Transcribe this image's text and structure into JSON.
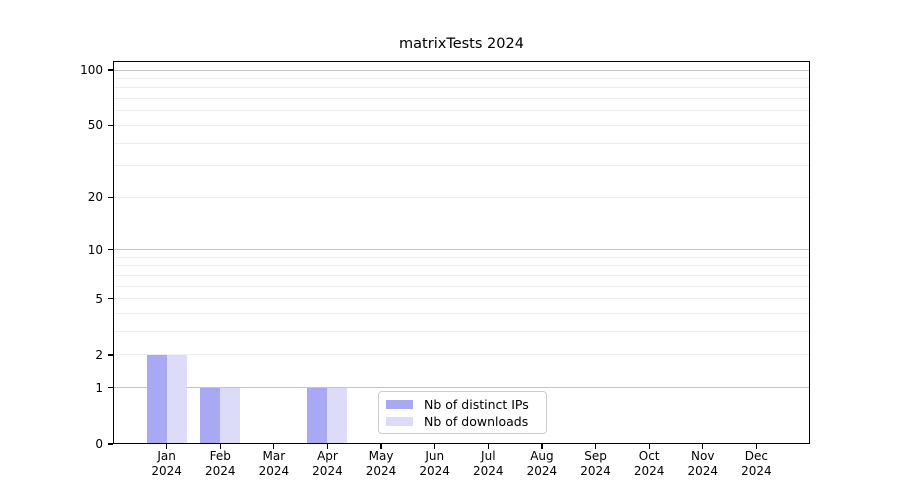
{
  "chart_data": {
    "type": "bar",
    "title": "matrixTests 2024",
    "xlabel": "",
    "ylabel": "",
    "categories": [
      "Jan",
      "Feb",
      "Mar",
      "Apr",
      "May",
      "Jun",
      "Jul",
      "Aug",
      "Sep",
      "Oct",
      "Nov",
      "Dec"
    ],
    "category_year": "2024",
    "series": [
      {
        "name": "Nb of distinct IPs",
        "color": "#a9a9f3",
        "values": [
          2,
          1,
          0,
          1,
          0,
          0,
          0,
          0,
          0,
          0,
          0,
          0
        ]
      },
      {
        "name": "Nb of downloads",
        "color": "#dcdcf8",
        "values": [
          2,
          1,
          0,
          1,
          0,
          0,
          0,
          0,
          0,
          0,
          0,
          0
        ]
      }
    ],
    "yscale": "log1p",
    "ylim": [
      0,
      112
    ],
    "y_ticks": [
      100,
      50,
      20,
      10,
      5,
      2,
      1,
      0
    ],
    "y_minor_grid": [
      2,
      3,
      4,
      5,
      6,
      7,
      8,
      9,
      20,
      30,
      40,
      50,
      60,
      70,
      80,
      90
    ],
    "y_major_grid": [
      1,
      10,
      100
    ],
    "grid": "horizontal-only",
    "legend_position": "inside lower-center",
    "colors": {
      "minor_grid": "#ececec",
      "major_grid": "#c4c4c4",
      "frame": "#000000",
      "background": "#ffffff"
    }
  }
}
